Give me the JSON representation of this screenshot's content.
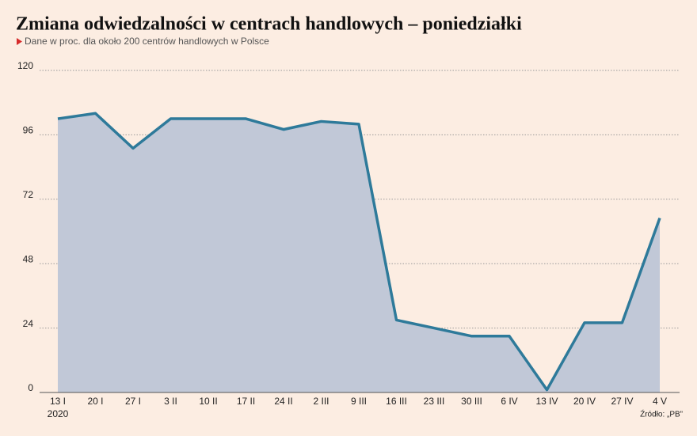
{
  "chart_data": {
    "type": "area",
    "title": "Zmiana odwiedzalności w centrach handlowych – poniedziałki",
    "subtitle": "Dane w proc. dla około 200 centrów handlowych w Polsce",
    "source": "Źródło: „PB”",
    "first_category_year": "2020",
    "categories": [
      "13 I",
      "20 I",
      "27 I",
      "3 II",
      "10 II",
      "17 II",
      "24 II",
      "2 III",
      "9 III",
      "16 III",
      "23 III",
      "30 III",
      "6 IV",
      "13 IV",
      "20 IV",
      "27 IV",
      "4 V"
    ],
    "values": [
      102,
      104,
      91,
      102,
      102,
      102,
      98,
      101,
      100,
      27,
      24,
      21,
      21,
      1,
      26,
      26,
      65
    ],
    "color": "#2e7a9a",
    "fill": "#c1c8d7",
    "ylim": [
      0,
      120
    ],
    "yticks": [
      0,
      24,
      48,
      72,
      96,
      120
    ],
    "grid": true
  }
}
